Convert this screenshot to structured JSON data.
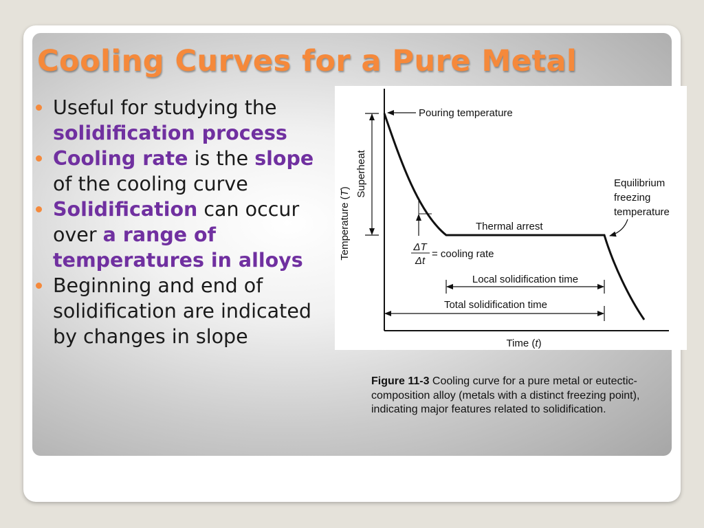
{
  "slide": {
    "title": "Cooling Curves for a Pure Metal",
    "bullets": [
      {
        "parts": [
          {
            "text": "Useful for studying the ",
            "highlight": false
          },
          {
            "text": "solidification process",
            "highlight": true
          }
        ]
      },
      {
        "parts": [
          {
            "text": "Cooling rate",
            "highlight": true
          },
          {
            "text": " is the ",
            "highlight": false
          },
          {
            "text": "slope",
            "highlight": true
          },
          {
            "text": " of the cooling curve",
            "highlight": false
          }
        ]
      },
      {
        "parts": [
          {
            "text": "Solidification",
            "highlight": true
          },
          {
            "text": " can occur over ",
            "highlight": false
          },
          {
            "text": "a range of temperatures in alloys",
            "highlight": true
          }
        ]
      },
      {
        "parts": [
          {
            "text": "Beginning and end of solidification are indicated by changes in slope",
            "highlight": false
          }
        ]
      }
    ],
    "accent_color": "#f5893b",
    "highlight_color": "#7030a0"
  },
  "figure": {
    "y_axis_label_main": "Temperature (",
    "y_axis_label_var": "T",
    "y_axis_label_end": ")",
    "superheat_label": "Superheat",
    "pouring_label": "Pouring temperature",
    "equilibrium_label_lines": [
      "Equilibrium",
      "freezing",
      "temperature"
    ],
    "thermal_arrest_label": "Thermal arrest",
    "delta_T": "ΔT",
    "delta_t": "Δt",
    "cooling_rate_label": "= cooling rate",
    "local_time_label": "Local solidification time",
    "total_time_label": "Total solidification time",
    "x_axis_label_main": "Time (",
    "x_axis_label_var": "t",
    "x_axis_label_end": ")"
  },
  "caption": {
    "label": "Figure 11-3",
    "text": " Cooling curve for a pure metal or eutectic-composition alloy (metals with a distinct freezing point), indicating major features related to solidification."
  }
}
